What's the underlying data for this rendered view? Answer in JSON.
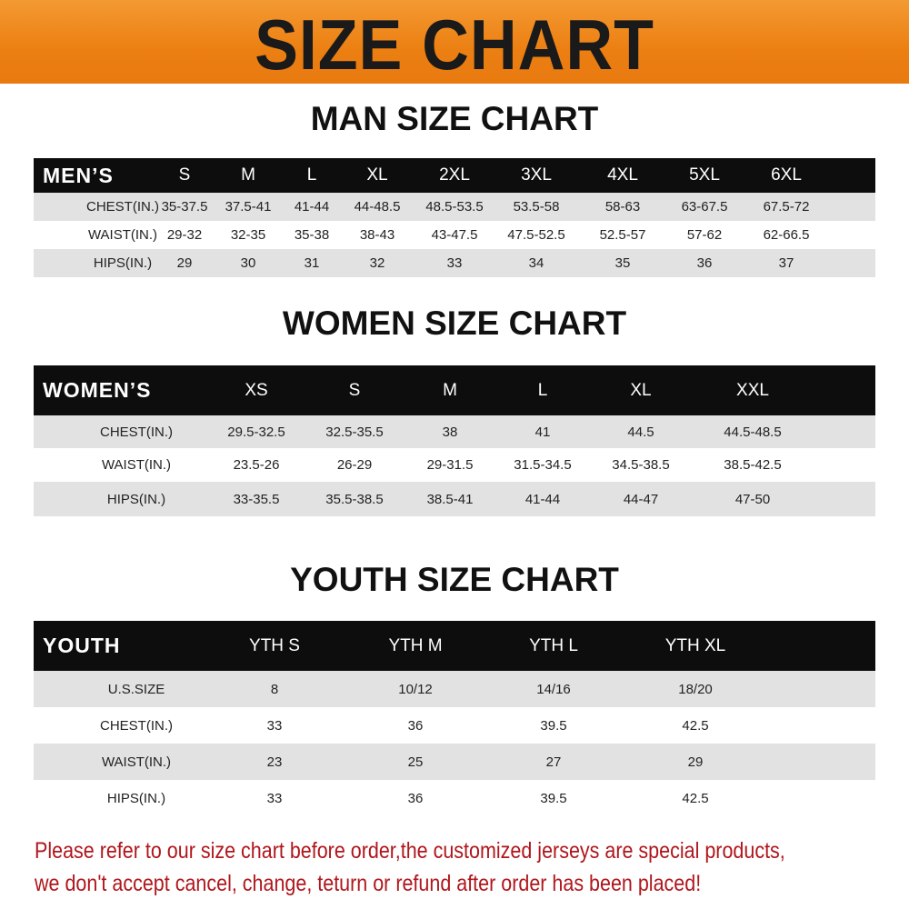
{
  "title": "SIZE CHART",
  "colors": {
    "banner": "#ec7f12",
    "header_row": "#0d0d0d",
    "stripe": "#e2e2e2",
    "notice": "#b0161c"
  },
  "men": {
    "title": "MAN SIZE CHART",
    "header": [
      "MEN’S",
      "S",
      "M",
      "L",
      "XL",
      "2XL",
      "3XL",
      "4XL",
      "5XL",
      "6XL"
    ],
    "rows": [
      [
        "CHEST(IN.)",
        "35-37.5",
        "37.5-41",
        "41-44",
        "44-48.5",
        "48.5-53.5",
        "53.5-58",
        "58-63",
        "63-67.5",
        "67.5-72"
      ],
      [
        "WAIST(IN.)",
        "29-32",
        "32-35",
        "35-38",
        "38-43",
        "43-47.5",
        "47.5-52.5",
        "52.5-57",
        "57-62",
        "62-66.5"
      ],
      [
        "HIPS(IN.)",
        "29",
        "30",
        "31",
        "32",
        "33",
        "34",
        "35",
        "36",
        "37"
      ]
    ]
  },
  "women": {
    "title": "WOMEN SIZE CHART",
    "header": [
      "WOMEN’S",
      "XS",
      "S",
      "M",
      "L",
      "XL",
      "XXL"
    ],
    "rows": [
      [
        "CHEST(IN.)",
        "29.5-32.5",
        "32.5-35.5",
        "38",
        "41",
        "44.5",
        "44.5-48.5"
      ],
      [
        "WAIST(IN.)",
        "23.5-26",
        "26-29",
        "29-31.5",
        "31.5-34.5",
        "34.5-38.5",
        "38.5-42.5"
      ],
      [
        "HIPS(IN.)",
        "33-35.5",
        "35.5-38.5",
        "38.5-41",
        "41-44",
        "44-47",
        "47-50"
      ]
    ]
  },
  "youth": {
    "title": "YOUTH SIZE CHART",
    "header": [
      "YOUTH",
      "YTH S",
      "YTH M",
      "YTH L",
      "YTH XL"
    ],
    "rows": [
      [
        "U.S.SIZE",
        "8",
        "10/12",
        "14/16",
        "18/20"
      ],
      [
        "CHEST(IN.)",
        "33",
        "36",
        "39.5",
        "42.5"
      ],
      [
        "WAIST(IN.)",
        "23",
        "25",
        "27",
        "29"
      ],
      [
        "HIPS(IN.)",
        "33",
        "36",
        "39.5",
        "42.5"
      ]
    ]
  },
  "notice": {
    "line1": "Please refer to our size chart before order,the customized jerseys are special products,",
    "line2": "we don't accept cancel, change, teturn or refund after order has been placed!"
  }
}
